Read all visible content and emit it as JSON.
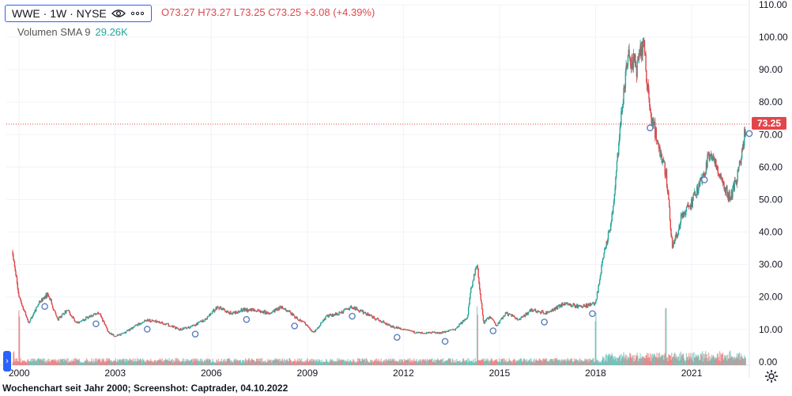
{
  "header": {
    "symbol": "WWE",
    "interval": "1W",
    "exchange": "NYSE",
    "title": "WWE · 1W · NYSE",
    "eye_icon": "eye-icon",
    "more_icon": "more-dots-icon",
    "ohlc": "O73.27 H73.27 L73.25 C73.25 +3.08 (+4.39%)"
  },
  "volume_legend": {
    "label": "Volumen SMA 9",
    "value": "29.26K"
  },
  "last_price": "73.25",
  "caption": "Wochenchart seit Jahr 2000; Screenshot: Captrader, 04.10.2022",
  "colors": {
    "up": "#26a69a",
    "down": "#e0474b",
    "accent": "#2962ff"
  },
  "chart_data": {
    "type": "candlestick",
    "title": "WWE · 1W · NYSE",
    "interval": "weekly",
    "xlim": [
      1999.6,
      2022.8
    ],
    "ylim": [
      -1,
      110
    ],
    "y_ticks": [
      "0.00",
      "10.00",
      "20.00",
      "30.00",
      "40.00",
      "50.00",
      "60.00",
      "70.00",
      "80.00",
      "90.00",
      "100.00",
      "110.00"
    ],
    "x_ticks": [
      "2000",
      "2003",
      "2006",
      "2009",
      "2012",
      "2015",
      "2018",
      "2021"
    ],
    "last_close": 73.25,
    "series": [
      {
        "name": "WWE",
        "x": [
          1999.8,
          2000.0,
          2000.3,
          2000.6,
          2000.9,
          2001.2,
          2001.5,
          2001.8,
          2002.2,
          2002.5,
          2002.8,
          2003.0,
          2003.3,
          2003.6,
          2004.0,
          2004.5,
          2005.0,
          2005.4,
          2005.8,
          2006.2,
          2006.6,
          2007.0,
          2007.4,
          2007.8,
          2008.2,
          2008.6,
          2008.9,
          2009.2,
          2009.6,
          2010.0,
          2010.4,
          2010.8,
          2011.2,
          2011.6,
          2012.0,
          2012.4,
          2012.8,
          2013.2,
          2013.6,
          2014.0,
          2014.1,
          2014.3,
          2014.5,
          2014.7,
          2014.9,
          2015.2,
          2015.6,
          2016.0,
          2016.5,
          2017.0,
          2017.5,
          2018.0,
          2018.2,
          2018.5,
          2018.8,
          2019.0,
          2019.3,
          2019.5,
          2019.7,
          2019.9,
          2020.2,
          2020.4,
          2020.7,
          2021.0,
          2021.3,
          2021.6,
          2021.9,
          2022.2,
          2022.5,
          2022.7
        ],
        "close": [
          34,
          20,
          12,
          18,
          21,
          13,
          16,
          12,
          14,
          15,
          9,
          8,
          9,
          11,
          13,
          12,
          10,
          11,
          13,
          17,
          15,
          16,
          16,
          15,
          17,
          14,
          12,
          9,
          14,
          15,
          17,
          15,
          13,
          11,
          10,
          9,
          9,
          9,
          10,
          14,
          22,
          30,
          12,
          14,
          11,
          15,
          13,
          16,
          15,
          18,
          17,
          18,
          30,
          44,
          75,
          95,
          90,
          100,
          75,
          70,
          58,
          35,
          45,
          49,
          56,
          65,
          56,
          50,
          60,
          73.25
        ],
        "volume_scale": "relative",
        "volume_spikes": [
          2000.0,
          2014.3,
          2018.0,
          2020.2
        ]
      }
    ],
    "markers": [
      2000.8,
      2002.4,
      2004.0,
      2005.5,
      2007.1,
      2008.6,
      2010.4,
      2011.8,
      2013.3,
      2014.8,
      2016.4,
      2017.9,
      2019.7,
      2021.4,
      2022.8
    ]
  }
}
